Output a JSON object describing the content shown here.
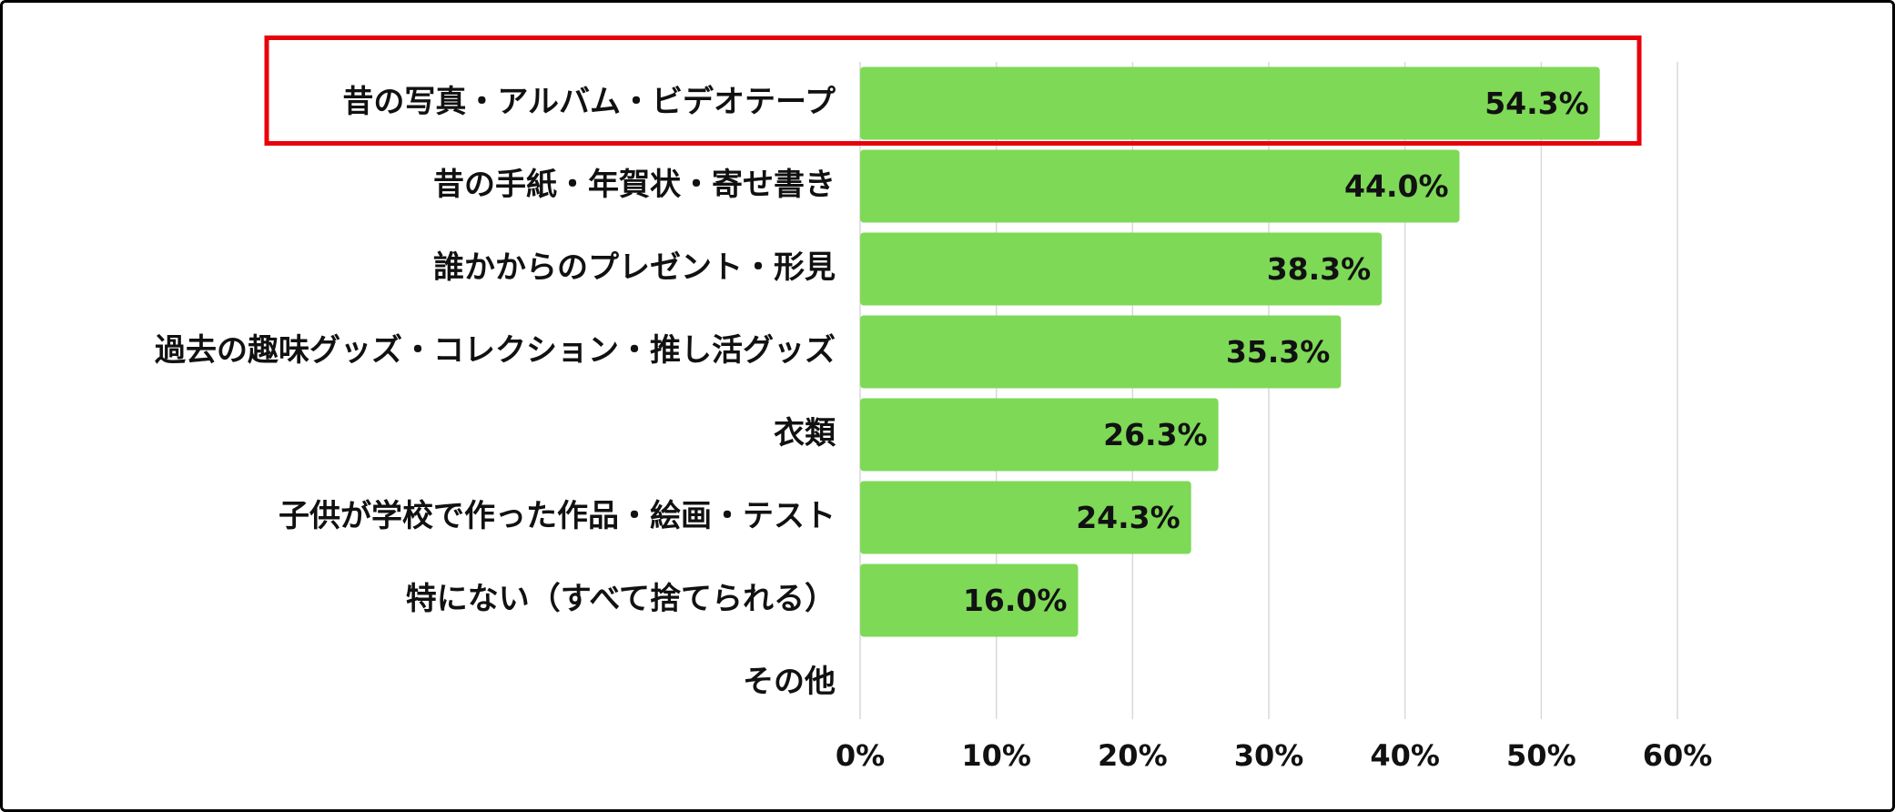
{
  "chart_data": {
    "type": "bar",
    "orientation": "horizontal",
    "title": "",
    "xlabel": "",
    "ylabel": "",
    "categories": [
      "昔の写真・アルバム・ビデオテープ",
      "昔の手紙・年賀状・寄せ書き",
      "誰かからのプレゼント・形見",
      "過去の趣味グッズ・コレクション・推し活グッズ",
      "衣類",
      "子供が学校で作った作品・絵画・テスト",
      "特にない（すべて捨てられる）",
      "その他"
    ],
    "values": [
      54.3,
      44.0,
      38.3,
      35.3,
      26.3,
      24.3,
      16.0,
      0
    ],
    "value_labels": [
      "54.3%",
      "44.0%",
      "38.3%",
      "35.3%",
      "26.3%",
      "24.3%",
      "16.0%",
      ""
    ],
    "xlim": [
      0,
      60
    ],
    "x_ticks": [
      0,
      10,
      20,
      30,
      40,
      50,
      60
    ],
    "x_tick_labels": [
      "0%",
      "10%",
      "20%",
      "30%",
      "40%",
      "50%",
      "60%"
    ],
    "grid": "vertical",
    "highlighted_category_index": 0,
    "colors": {
      "bar": "#7ED957",
      "highlight_box": "#E8000B",
      "grid": "#D9D9D9",
      "frame": "#000000"
    }
  }
}
